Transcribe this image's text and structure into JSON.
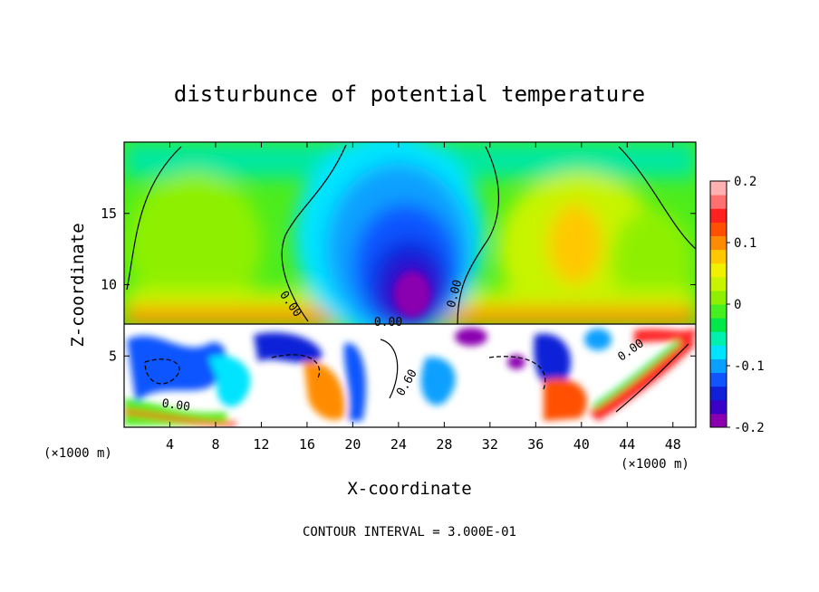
{
  "chart_data": {
    "type": "heatmap",
    "title": "disturbunce of potential temperature",
    "xlabel": "X-coordinate",
    "ylabel": "Z-coordinate",
    "x_unit_left": "(×1000 m)",
    "x_unit_right": "(×1000 m)",
    "xlim": [
      0,
      50
    ],
    "ylim": [
      0,
      20
    ],
    "x_ticks": [
      4,
      8,
      12,
      16,
      20,
      24,
      28,
      32,
      36,
      40,
      44,
      48
    ],
    "y_ticks": [
      5,
      10,
      15
    ],
    "contour_interval_text": "CONTOUR INTERVAL = 3.000E-01",
    "contour_labels": [
      {
        "text": "0.00",
        "x": 14.3,
        "z": 8.5,
        "angle": 55
      },
      {
        "text": "0.00",
        "x": 29.2,
        "z": 9.3,
        "angle": -75
      },
      {
        "text": "0.00",
        "x": 23.1,
        "z": 7.1,
        "angle": 0
      },
      {
        "text": "0.00",
        "x": 4.5,
        "z": 1.3,
        "angle": 8
      },
      {
        "text": "0.00",
        "x": 44.5,
        "z": 5.2,
        "angle": -35
      },
      {
        "text": "0.60",
        "x": 25.0,
        "z": 3.0,
        "angle": -60
      }
    ],
    "colorbar": {
      "min": -0.2,
      "max": 0.2,
      "tick_values": [
        0.2,
        0.1,
        0,
        -0.1,
        -0.2
      ],
      "tick_labels": [
        "0.2",
        "0.1",
        "0",
        "-0.1",
        "-0.2"
      ],
      "colors": [
        "#8a00b0",
        "#3a00c8",
        "#1020d8",
        "#1055ff",
        "#0aa0ff",
        "#00e4ff",
        "#00f0b0",
        "#00e84a",
        "#46f020",
        "#8ef000",
        "#c8f400",
        "#f0f000",
        "#ffc800",
        "#ff8c00",
        "#ff5000",
        "#ff2020",
        "#ff7070",
        "#ffb0b0"
      ]
    },
    "fields": {
      "plume_above": {
        "description_value": -0.2,
        "x_center": 24.5,
        "z_top": 18
      },
      "warm_above": [
        {
          "x_center": 7,
          "value": 0.05
        },
        {
          "x_center": 40,
          "value": 0.1
        }
      ],
      "saturated_below": {
        "z_top": 7.2,
        "value_range": [
          -0.6,
          0.6
        ]
      }
    }
  }
}
